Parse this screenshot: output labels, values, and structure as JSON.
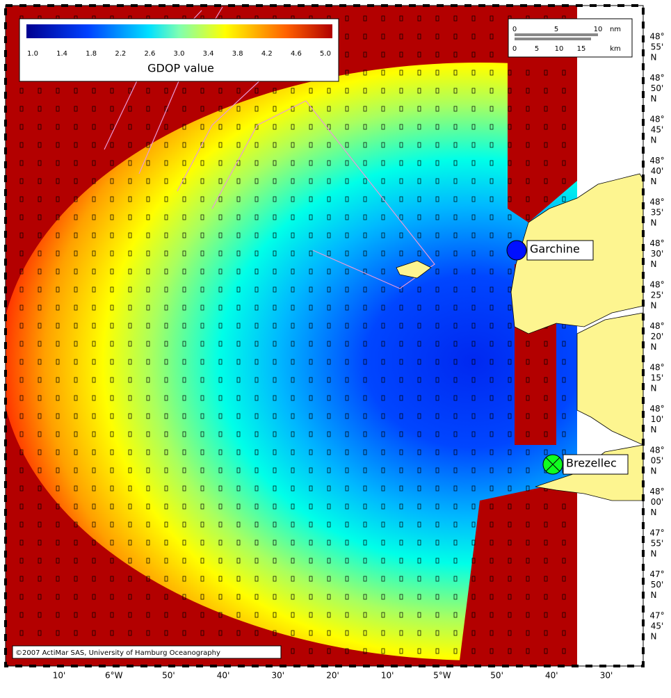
{
  "colorbar": {
    "ticks": [
      "1.0",
      "1.4",
      "1.8",
      "2.2",
      "2.6",
      "3.0",
      "3.4",
      "3.8",
      "4.2",
      "4.6",
      "5.0"
    ],
    "label": "GDOP value"
  },
  "scale_bar": {
    "nm": [
      "0",
      "5",
      "10",
      "nm"
    ],
    "km": [
      "0",
      "5",
      "10",
      "15",
      "km"
    ]
  },
  "stations": [
    {
      "name": "Garchine"
    },
    {
      "name": "Brezellec"
    }
  ],
  "latitude_labels": [
    {
      "deg": "48°",
      "min": "55'",
      "hemi": "N"
    },
    {
      "deg": "48°",
      "min": "50'",
      "hemi": "N"
    },
    {
      "deg": "48°",
      "min": "45'",
      "hemi": "N"
    },
    {
      "deg": "48°",
      "min": "40'",
      "hemi": "N"
    },
    {
      "deg": "48°",
      "min": "35'",
      "hemi": "N"
    },
    {
      "deg": "48°",
      "min": "30'",
      "hemi": "N"
    },
    {
      "deg": "48°",
      "min": "25'",
      "hemi": "N"
    },
    {
      "deg": "48°",
      "min": "20'",
      "hemi": "N"
    },
    {
      "deg": "48°",
      "min": "15'",
      "hemi": "N"
    },
    {
      "deg": "48°",
      "min": "10'",
      "hemi": "N"
    },
    {
      "deg": "48°",
      "min": "05'",
      "hemi": "N"
    },
    {
      "deg": "48°",
      "min": "00'",
      "hemi": "N"
    },
    {
      "deg": "47°",
      "min": "55'",
      "hemi": "N"
    },
    {
      "deg": "47°",
      "min": "50'",
      "hemi": "N"
    },
    {
      "deg": "47°",
      "min": "45'",
      "hemi": "N"
    }
  ],
  "longitude_labels": [
    "10'",
    "6°W",
    "50'",
    "40'",
    "30'",
    "20'",
    "10'",
    "5°W",
    "50'",
    "40'",
    "30'"
  ],
  "copyright": "©2007 ActiMar SAS, University of Hamburg Oceanography"
}
